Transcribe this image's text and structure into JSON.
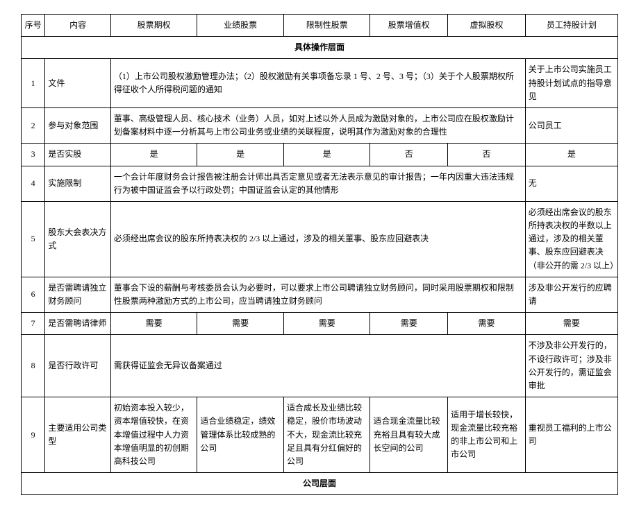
{
  "headers": [
    "序号",
    "内容",
    "股票期权",
    "业绩股票",
    "限制性股票",
    "股票增值权",
    "虚拟股权",
    "员工持股计划"
  ],
  "section1": "具体操作层面",
  "section2": "公司层面",
  "rows": [
    {
      "n": "1",
      "label": "文件",
      "span5": "（1）上市公司股权激励管理办法；（2）股权激励有关事项备忘录 1 号、2 号、3 号；（3）关于个人股票期权所得征收个人所得税问题的通知",
      "last": "关于上市公司实施员工持股计划试点的指导意见"
    },
    {
      "n": "2",
      "label": "参与对象范围",
      "span5": "董事、高级管理人员、核心技术（业务）人员，如对上述以外人员成为激励对象的，上市公司应在股权激励计划备案材料中逐一分析其与上市公司业务或业绩的关联程度，说明其作为激励对象的合理性",
      "last": "公司员工"
    },
    {
      "n": "3",
      "label": "是否实股",
      "cells": [
        "是",
        "是",
        "是",
        "否",
        "否",
        "是"
      ]
    },
    {
      "n": "4",
      "label": "实施限制",
      "span5": "一个会计年度财务会计报告被注册会计师出具否定意见或者无法表示意见的审计报告；一年内因重大违法违规行为被中国证监会予以行政处罚；中国证监会认定的其他情形",
      "last": "无"
    },
    {
      "n": "5",
      "label": "股东大会表决方式",
      "span5": "必须经出席会议的股东所持表决权的 2/3 以上通过，涉及的相关董事、股东应回避表决",
      "last": "必须经出席会议的股东所持表决权的半数以上通过，涉及的相关董事、股东应回避表决（非公开的需 2/3 以上）"
    },
    {
      "n": "6",
      "label": "是否需聘请独立财务顾问",
      "span5": "董事会下设的薪酬与考核委员会认为必要时，可以要求上市公司聘请独立财务顾问，同时采用股票期权和限制性股票两种激励方式的上市公司，应当聘请独立财务顾问",
      "last": "涉及非公开发行的应聘请"
    },
    {
      "n": "7",
      "label": "是否需聘请律师",
      "cells": [
        "需要",
        "需要",
        "需要",
        "需要",
        "需要",
        "需要"
      ]
    },
    {
      "n": "8",
      "label": "是否行政许可",
      "span5": "需获得证监会无异议备案通过",
      "last": "不涉及非公开发行的，不设行政许可；涉及非公开发行的，需证监会审批"
    },
    {
      "n": "9",
      "label": "主要适用公司类型",
      "cells": [
        "初始资本投入较少，资本增值较快，在资本增值过程中人力资本增值明显的初创期高科技公司",
        "适合业绩稳定，绩效管理体系比较成熟的公司",
        "适合成长及业绩比较稳定，股价市场波动不大，现金流比较充足且具有分红偏好的公司",
        "适合现金流量比较充裕且具有较大成长空间的公司",
        "适用于增长较快，现金流量比较充裕的非上市公司和上市公司",
        "重视员工福利的上市公司"
      ]
    }
  ]
}
